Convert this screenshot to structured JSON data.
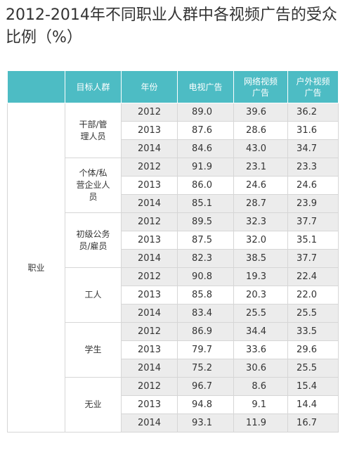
{
  "title": "2012-2014年不同职业人群中各视频广告的受众比例（%）",
  "headers": {
    "col1": "",
    "target": "目标人群",
    "year": "年份",
    "tv": "电视广告",
    "net": "网络视频广告",
    "outdoor": "户外视频广告"
  },
  "occupation_label": "职业",
  "groups": [
    {
      "name": "干部/管理人员",
      "rows": [
        {
          "year": "2012",
          "tv": "89.0",
          "net": "39.6",
          "outdoor": "36.2"
        },
        {
          "year": "2013",
          "tv": "87.6",
          "net": "28.6",
          "outdoor": "31.6"
        },
        {
          "year": "2014",
          "tv": "84.6",
          "net": "43.0",
          "outdoor": "34.7"
        }
      ]
    },
    {
      "name": "个体/私营企业人员",
      "rows": [
        {
          "year": "2012",
          "tv": "91.9",
          "net": "23.1",
          "outdoor": "23.3"
        },
        {
          "year": "2013",
          "tv": "86.0",
          "net": "24.6",
          "outdoor": "24.6"
        },
        {
          "year": "2014",
          "tv": "85.1",
          "net": "28.7",
          "outdoor": "23.9"
        }
      ]
    },
    {
      "name": "初级公务员/雇员",
      "rows": [
        {
          "year": "2012",
          "tv": "89.5",
          "net": "32.3",
          "outdoor": "37.7"
        },
        {
          "year": "2013",
          "tv": "87.5",
          "net": "32.0",
          "outdoor": "35.1"
        },
        {
          "year": "2014",
          "tv": "82.3",
          "net": "38.5",
          "outdoor": "37.7"
        }
      ]
    },
    {
      "name": "工人",
      "rows": [
        {
          "year": "2012",
          "tv": "90.8",
          "net": "19.3",
          "outdoor": "22.4"
        },
        {
          "year": "2013",
          "tv": "85.8",
          "net": "20.3",
          "outdoor": "22.0"
        },
        {
          "year": "2014",
          "tv": "83.4",
          "net": "25.5",
          "outdoor": "25.5"
        }
      ]
    },
    {
      "name": "学生",
      "rows": [
        {
          "year": "2012",
          "tv": "86.9",
          "net": "34.4",
          "outdoor": "33.5"
        },
        {
          "year": "2013",
          "tv": "79.7",
          "net": "33.6",
          "outdoor": "29.6"
        },
        {
          "year": "2014",
          "tv": "75.2",
          "net": "30.6",
          "outdoor": "25.5"
        }
      ]
    },
    {
      "name": "无业",
      "rows": [
        {
          "year": "2012",
          "tv": "96.7",
          "net": "8.6",
          "outdoor": "15.4"
        },
        {
          "year": "2013",
          "tv": "94.8",
          "net": "9.1",
          "outdoor": "14.4"
        },
        {
          "year": "2014",
          "tv": "93.1",
          "net": "11.9",
          "outdoor": "16.7"
        }
      ]
    }
  ],
  "colors": {
    "header_bg": "#4dbcc4",
    "stripe_bg": "#ececec",
    "border": "#d6d6d6"
  }
}
